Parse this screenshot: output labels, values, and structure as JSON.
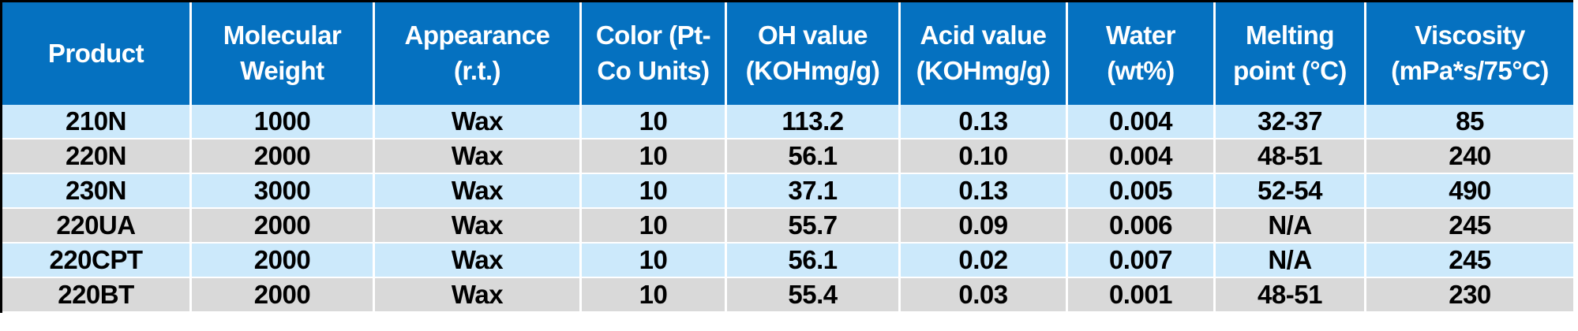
{
  "chart_data": {
    "type": "table",
    "title": "",
    "columns": [
      "Product",
      "Molecular Weight",
      "Appearance (r.t.)",
      "Color (Pt-Co Units)",
      "OH value (KOHmg/g)",
      "Acid value (KOHmg/g)",
      "Water (wt%)",
      "Melting point (°C)",
      "Viscosity (mPa*s/75°C)"
    ],
    "rows": [
      [
        "210N",
        "1000",
        "Wax",
        "10",
        "113.2",
        "0.13",
        "0.004",
        "32-37",
        "85"
      ],
      [
        "220N",
        "2000",
        "Wax",
        "10",
        "56.1",
        "0.10",
        "0.004",
        "48-51",
        "240"
      ],
      [
        "230N",
        "3000",
        "Wax",
        "10",
        "37.1",
        "0.13",
        "0.005",
        "52-54",
        "490"
      ],
      [
        "220UA",
        "2000",
        "Wax",
        "10",
        "55.7",
        "0.09",
        "0.006",
        "N/A",
        "245"
      ],
      [
        "220CPT",
        "2000",
        "Wax",
        "10",
        "56.1",
        "0.02",
        "0.007",
        "N/A",
        "245"
      ],
      [
        "220BT",
        "2000",
        "Wax",
        "10",
        "55.4",
        "0.03",
        "0.001",
        "48-51",
        "230"
      ]
    ],
    "layout": {
      "header_bg": "#0571c0",
      "header_text_color": "#ffffff",
      "row_stripe_blue": "#cce9fb",
      "row_stripe_gray": "#d9d9d9",
      "outer_border_color": "#000000",
      "grid_color": "#ffffff"
    }
  }
}
